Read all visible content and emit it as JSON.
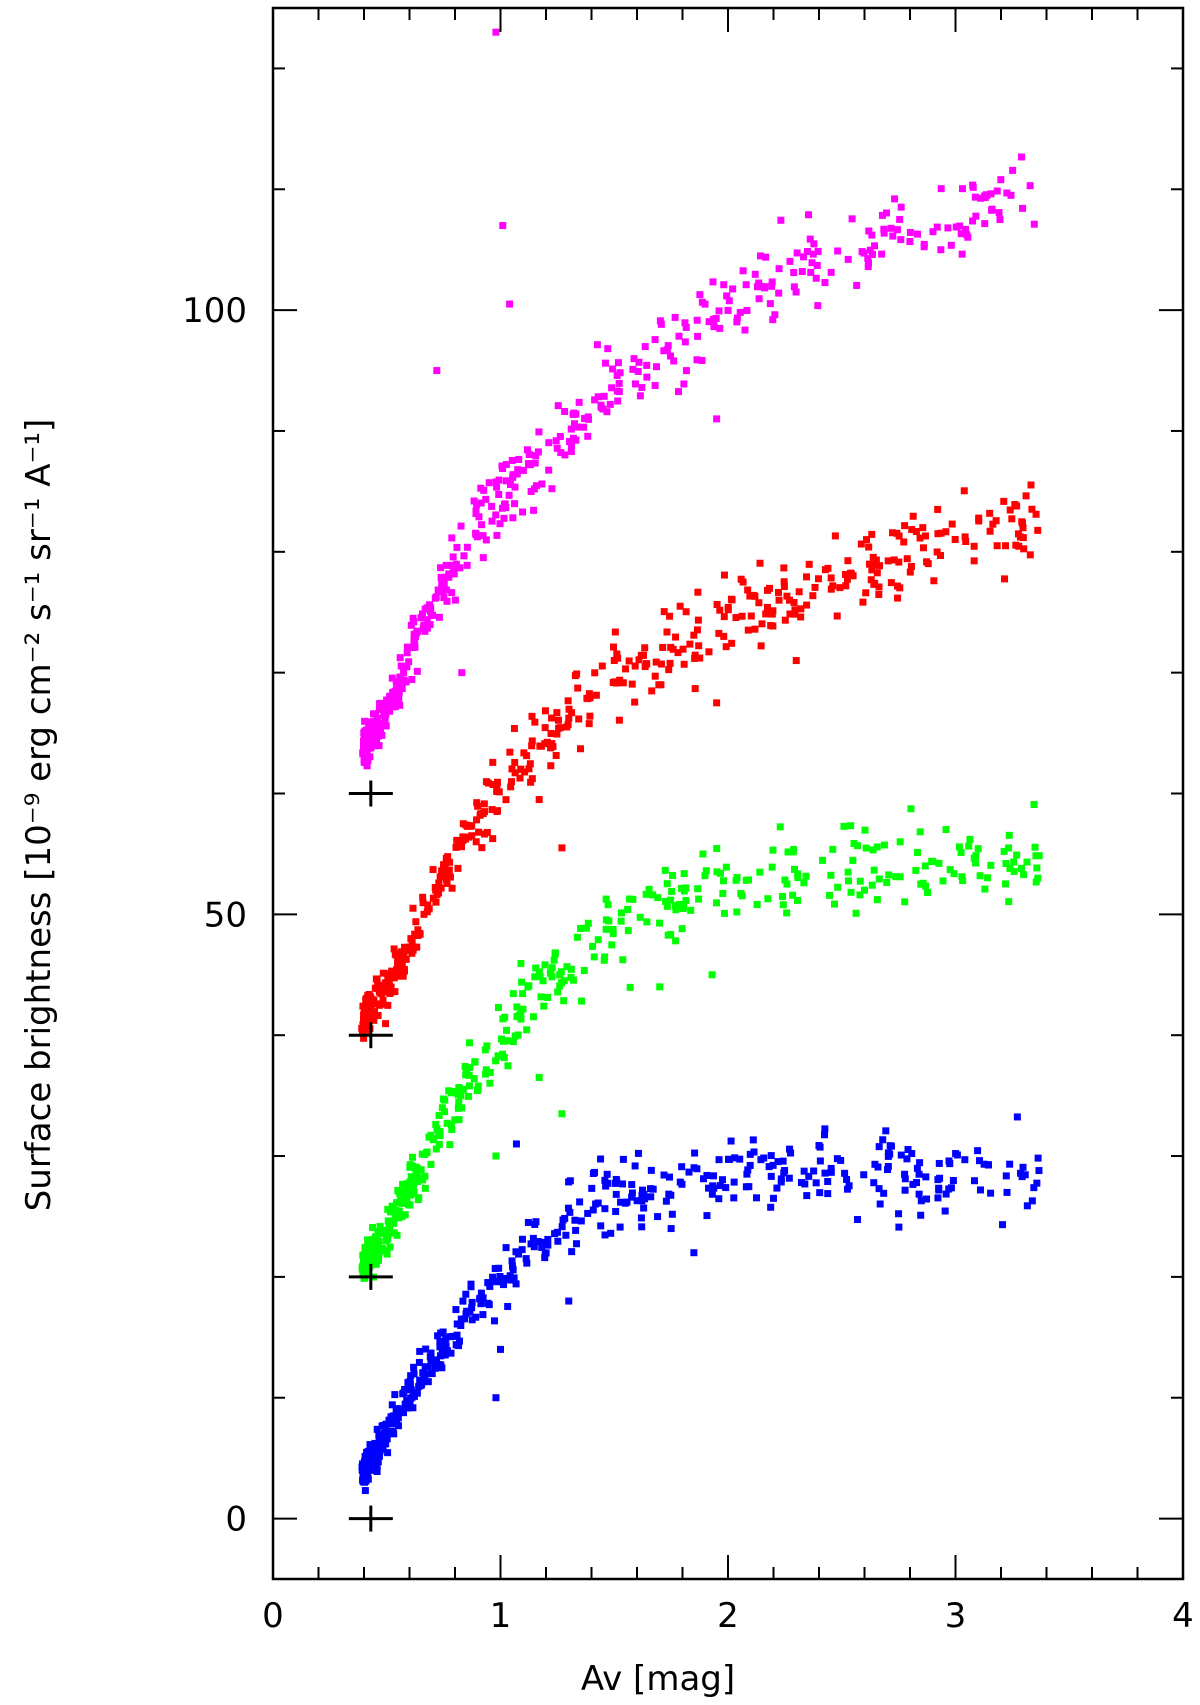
{
  "chart_data": {
    "type": "scatter",
    "title": "",
    "xlabel": "Av [mag]",
    "ylabel": "Surface brightness [10⁻⁹ erg cm⁻² s⁻¹ sr⁻¹ A⁻¹]",
    "xlim": [
      0,
      4
    ],
    "ylim": [
      -5,
      125
    ],
    "x_ticks": [
      0,
      1,
      2,
      3,
      4
    ],
    "y_ticks": [
      0,
      50,
      100
    ],
    "grid": false,
    "legend": "none",
    "marker": "square",
    "series": [
      {
        "color": "#0000ff",
        "zero_marker": [
          0.43,
          0
        ],
        "trend_points": [
          [
            0.4,
            4
          ],
          [
            0.5,
            7
          ],
          [
            0.6,
            10
          ],
          [
            0.7,
            13
          ],
          [
            0.8,
            15.5
          ],
          [
            0.9,
            18
          ],
          [
            1.0,
            20
          ],
          [
            1.1,
            22
          ],
          [
            1.2,
            23.5
          ],
          [
            1.3,
            24.5
          ],
          [
            1.4,
            25.5
          ],
          [
            1.5,
            26.5
          ],
          [
            1.6,
            27
          ],
          [
            1.8,
            28
          ],
          [
            2.0,
            28.5
          ],
          [
            2.2,
            29
          ],
          [
            2.5,
            29
          ],
          [
            2.8,
            28.5
          ],
          [
            3.1,
            28.5
          ],
          [
            3.37,
            28.5
          ]
        ],
        "outliers": [
          [
            1.07,
            31
          ],
          [
            1.0,
            14
          ],
          [
            1.3,
            18
          ],
          [
            0.7,
            12
          ],
          [
            0.98,
            10
          ],
          [
            1.85,
            22
          ],
          [
            2.2,
            26.5
          ],
          [
            1.75,
            24
          ]
        ]
      },
      {
        "color": "#00ff00",
        "zero_marker": [
          0.43,
          20
        ],
        "trend_points": [
          [
            0.4,
            21
          ],
          [
            0.5,
            23.5
          ],
          [
            0.6,
            27
          ],
          [
            0.7,
            31
          ],
          [
            0.8,
            34.5
          ],
          [
            0.9,
            37.5
          ],
          [
            1.0,
            40
          ],
          [
            1.1,
            42.5
          ],
          [
            1.2,
            44.5
          ],
          [
            1.3,
            46
          ],
          [
            1.4,
            47.5
          ],
          [
            1.5,
            48.5
          ],
          [
            1.6,
            49.5
          ],
          [
            1.8,
            51
          ],
          [
            2.0,
            52.5
          ],
          [
            2.2,
            53.5
          ],
          [
            2.5,
            54
          ],
          [
            2.8,
            54
          ],
          [
            3.1,
            54.5
          ],
          [
            3.37,
            55.5
          ]
        ],
        "outliers": [
          [
            1.17,
            36.5
          ],
          [
            1.27,
            33.5
          ],
          [
            0.98,
            30
          ],
          [
            1.7,
            44
          ],
          [
            2.6,
            52
          ],
          [
            1.93,
            45
          ]
        ]
      },
      {
        "color": "#ff0000",
        "zero_marker": [
          0.43,
          40
        ],
        "trend_points": [
          [
            0.4,
            41.5
          ],
          [
            0.5,
            44
          ],
          [
            0.6,
            47.5
          ],
          [
            0.7,
            51.5
          ],
          [
            0.8,
            55
          ],
          [
            0.9,
            58
          ],
          [
            1.0,
            60.5
          ],
          [
            1.1,
            62.5
          ],
          [
            1.2,
            64.5
          ],
          [
            1.3,
            66.5
          ],
          [
            1.4,
            68
          ],
          [
            1.5,
            69.5
          ],
          [
            1.6,
            70.5
          ],
          [
            1.8,
            72.5
          ],
          [
            2.0,
            74.5
          ],
          [
            2.2,
            76
          ],
          [
            2.5,
            78
          ],
          [
            2.8,
            79.5
          ],
          [
            3.1,
            81
          ],
          [
            3.37,
            82.5
          ]
        ],
        "outliers": [
          [
            1.27,
            55.5
          ],
          [
            1.17,
            59.5
          ],
          [
            1.95,
            67.5
          ],
          [
            2.3,
            71
          ],
          [
            0.93,
            58.5
          ]
        ]
      },
      {
        "color": "#ff00ff",
        "zero_marker": [
          0.43,
          60
        ],
        "trend_points": [
          [
            0.4,
            64
          ],
          [
            0.5,
            67
          ],
          [
            0.6,
            71
          ],
          [
            0.7,
            75.5
          ],
          [
            0.8,
            79
          ],
          [
            0.9,
            82
          ],
          [
            1.0,
            84.5
          ],
          [
            1.1,
            86.5
          ],
          [
            1.2,
            88.5
          ],
          [
            1.3,
            90.5
          ],
          [
            1.4,
            92
          ],
          [
            1.5,
            93.5
          ],
          [
            1.6,
            95
          ],
          [
            1.8,
            97.5
          ],
          [
            2.0,
            100
          ],
          [
            2.2,
            102.5
          ],
          [
            2.5,
            105
          ],
          [
            2.8,
            107
          ],
          [
            3.1,
            108.5
          ],
          [
            3.37,
            110
          ]
        ],
        "outliers": [
          [
            0.98,
            123
          ],
          [
            1.01,
            107
          ],
          [
            1.04,
            100.5
          ],
          [
            0.72,
            95
          ],
          [
            1.95,
            91
          ],
          [
            0.83,
            70
          ]
        ]
      }
    ]
  }
}
